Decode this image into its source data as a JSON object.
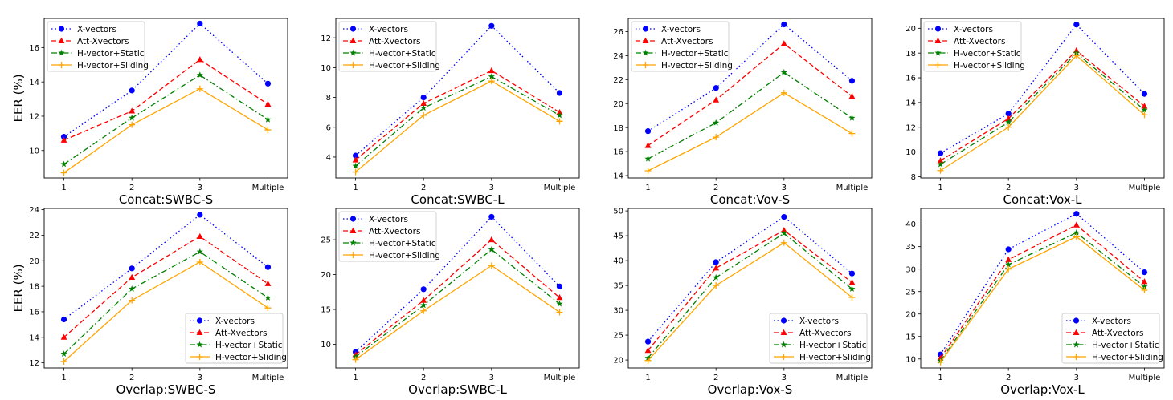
{
  "series_styles": [
    {
      "name": "X-vectors",
      "color": "#0000ff",
      "dash": "1.5,3",
      "marker": "circle"
    },
    {
      "name": "Att-Xvectors",
      "color": "#ff0000",
      "dash": "6,3",
      "marker": "triangle"
    },
    {
      "name": "H-vector+Static",
      "color": "#008000",
      "dash": "7,3,1.5,3",
      "marker": "star"
    },
    {
      "name": "H-vector+Sliding",
      "color": "#ffa500",
      "dash": "",
      "marker": "plus"
    }
  ],
  "y_axis_label": "EER (%)",
  "chart_data": [
    {
      "type": "line",
      "title": "",
      "xlabel": "Concat:SWBC-S",
      "ylabel": "EER (%)",
      "categories": [
        "1",
        "2",
        "3",
        "Multiple"
      ],
      "ylim": [
        8.4,
        17.7
      ],
      "yticks": [
        10,
        12,
        14,
        16
      ],
      "legend": "upper-left",
      "series": [
        {
          "name": "X-vectors",
          "values": [
            10.8,
            13.5,
            17.4,
            13.9
          ]
        },
        {
          "name": "Att-Xvectors",
          "values": [
            10.6,
            12.3,
            15.3,
            12.7
          ]
        },
        {
          "name": "H-vector+Static",
          "values": [
            9.2,
            11.9,
            14.4,
            11.8
          ]
        },
        {
          "name": "H-vector+Sliding",
          "values": [
            8.7,
            11.5,
            13.6,
            11.2
          ]
        }
      ]
    },
    {
      "type": "line",
      "title": "",
      "xlabel": "Concat:SWBC-L",
      "ylabel": "",
      "categories": [
        "1",
        "2",
        "3",
        "Multiple"
      ],
      "ylim": [
        2.6,
        13.3
      ],
      "yticks": [
        4,
        6,
        8,
        10,
        12
      ],
      "legend": "upper-left",
      "series": [
        {
          "name": "X-vectors",
          "values": [
            4.1,
            8.0,
            12.8,
            8.3
          ]
        },
        {
          "name": "Att-Xvectors",
          "values": [
            3.8,
            7.6,
            9.8,
            7.0
          ]
        },
        {
          "name": "H-vector+Static",
          "values": [
            3.4,
            7.3,
            9.4,
            6.8
          ]
        },
        {
          "name": "H-vector+Sliding",
          "values": [
            3.0,
            6.8,
            9.1,
            6.4
          ]
        }
      ]
    },
    {
      "type": "line",
      "title": "",
      "xlabel": "Concat:Vov-S",
      "ylabel": "",
      "categories": [
        "1",
        "2",
        "3",
        "Multiple"
      ],
      "ylim": [
        13.8,
        27.1
      ],
      "yticks": [
        14,
        16,
        18,
        20,
        22,
        24,
        26
      ],
      "legend": "upper-left",
      "series": [
        {
          "name": "X-vectors",
          "values": [
            17.7,
            21.3,
            26.6,
            21.9
          ]
        },
        {
          "name": "Att-Xvectors",
          "values": [
            16.5,
            20.3,
            25.0,
            20.6
          ]
        },
        {
          "name": "H-vector+Static",
          "values": [
            15.4,
            18.4,
            22.6,
            18.8
          ]
        },
        {
          "name": "H-vector+Sliding",
          "values": [
            14.4,
            17.2,
            20.9,
            17.5
          ]
        }
      ]
    },
    {
      "type": "line",
      "title": "",
      "xlabel": "Concat:Vox-L",
      "ylabel": "",
      "categories": [
        "1",
        "2",
        "3",
        "Multiple"
      ],
      "ylim": [
        7.9,
        20.8
      ],
      "yticks": [
        8,
        10,
        12,
        14,
        16,
        18,
        20
      ],
      "legend": "upper-left",
      "series": [
        {
          "name": "X-vectors",
          "values": [
            9.9,
            13.1,
            20.3,
            14.7
          ]
        },
        {
          "name": "Att-Xvectors",
          "values": [
            9.3,
            12.7,
            18.2,
            13.7
          ]
        },
        {
          "name": "H-vector+Static",
          "values": [
            9.0,
            12.4,
            18.0,
            13.4
          ]
        },
        {
          "name": "H-vector+Sliding",
          "values": [
            8.5,
            12.0,
            17.8,
            13.0
          ]
        }
      ]
    },
    {
      "type": "line",
      "title": "",
      "xlabel": "Overlap:SWBC-S",
      "ylabel": "EER (%)",
      "categories": [
        "1",
        "2",
        "3",
        "Multiple"
      ],
      "ylim": [
        11.6,
        24.1
      ],
      "yticks": [
        12,
        14,
        16,
        18,
        20,
        22,
        24
      ],
      "legend": "lower-right",
      "series": [
        {
          "name": "X-vectors",
          "values": [
            15.4,
            19.4,
            23.6,
            19.5
          ]
        },
        {
          "name": "Att-Xvectors",
          "values": [
            14.0,
            18.7,
            21.9,
            18.2
          ]
        },
        {
          "name": "H-vector+Static",
          "values": [
            12.7,
            17.8,
            20.7,
            17.1
          ]
        },
        {
          "name": "H-vector+Sliding",
          "values": [
            12.1,
            16.9,
            19.9,
            16.3
          ]
        }
      ]
    },
    {
      "type": "line",
      "title": "",
      "xlabel": "Overlap:SWBC-L",
      "ylabel": "",
      "categories": [
        "1",
        "2",
        "3",
        "Multiple"
      ],
      "ylim": [
        6.6,
        29.5
      ],
      "yticks": [
        10,
        15,
        20,
        25
      ],
      "legend": "upper-left",
      "series": [
        {
          "name": "X-vectors",
          "values": [
            8.9,
            17.9,
            28.3,
            18.3
          ]
        },
        {
          "name": "Att-Xvectors",
          "values": [
            8.5,
            16.3,
            25.0,
            16.7
          ]
        },
        {
          "name": "H-vector+Static",
          "values": [
            8.2,
            15.6,
            23.6,
            15.8
          ]
        },
        {
          "name": "H-vector+Sliding",
          "values": [
            7.8,
            14.8,
            21.3,
            14.6
          ]
        }
      ]
    },
    {
      "type": "line",
      "title": "",
      "xlabel": "Overlap:Vox-S",
      "ylabel": "",
      "categories": [
        "1",
        "2",
        "3",
        "Multiple"
      ],
      "ylim": [
        18.4,
        50.5
      ],
      "yticks": [
        20,
        25,
        30,
        35,
        40,
        45,
        50
      ],
      "legend": "lower-right",
      "series": [
        {
          "name": "X-vectors",
          "values": [
            23.7,
            39.7,
            48.8,
            37.4
          ]
        },
        {
          "name": "Att-Xvectors",
          "values": [
            21.9,
            38.5,
            46.1,
            35.6
          ]
        },
        {
          "name": "H-vector+Static",
          "values": [
            20.4,
            36.6,
            45.5,
            34.3
          ]
        },
        {
          "name": "H-vector+Sliding",
          "values": [
            19.9,
            35.0,
            43.6,
            32.6
          ]
        }
      ]
    },
    {
      "type": "line",
      "title": "",
      "xlabel": "Overlap:Vox-L",
      "ylabel": "",
      "categories": [
        "1",
        "2",
        "3",
        "Multiple"
      ],
      "ylim": [
        8.0,
        43.5
      ],
      "yticks": [
        10,
        15,
        20,
        25,
        30,
        35,
        40
      ],
      "legend": "lower-right",
      "series": [
        {
          "name": "X-vectors",
          "values": [
            11.0,
            34.4,
            42.3,
            29.3
          ]
        },
        {
          "name": "Att-Xvectors",
          "values": [
            10.2,
            32.1,
            39.8,
            27.2
          ]
        },
        {
          "name": "H-vector+Static",
          "values": [
            9.6,
            31.0,
            38.1,
            26.1
          ]
        },
        {
          "name": "H-vector+Sliding",
          "values": [
            9.3,
            30.0,
            37.2,
            25.3
          ]
        }
      ]
    }
  ]
}
